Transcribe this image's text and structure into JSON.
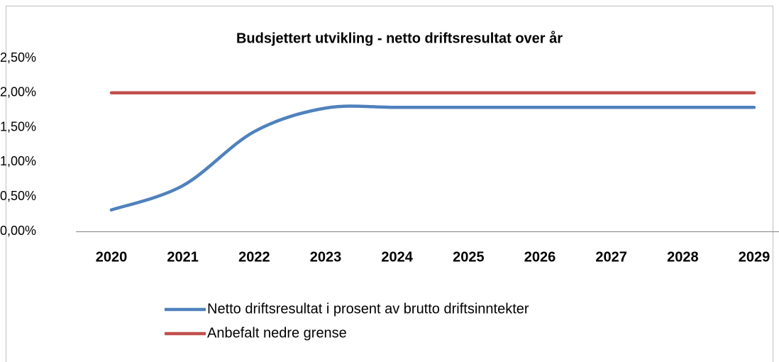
{
  "chart_data": {
    "type": "line",
    "title": "Budsjettert utvikling - netto driftsresultat over år",
    "categories": [
      "2020",
      "2021",
      "2022",
      "2023",
      "2024",
      "2025",
      "2026",
      "2027",
      "2028",
      "2029"
    ],
    "series": [
      {
        "name": "Netto driftsresultat i prosent av brutto driftsinntekter",
        "color": "#4f81bd",
        "values": [
          0.31,
          0.66,
          1.44,
          1.78,
          1.79,
          1.79,
          1.79,
          1.79,
          1.79,
          1.79
        ]
      },
      {
        "name": "Anbefalt nedre grense",
        "color": "#c0504d",
        "values": [
          2.0,
          2.0,
          2.0,
          2.0,
          2.0,
          2.0,
          2.0,
          2.0,
          2.0,
          2.0
        ]
      }
    ],
    "ylim": [
      0,
      2.5
    ],
    "yticks": [
      {
        "value": 0,
        "label": "0,00%"
      },
      {
        "value": 0.5,
        "label": "0,50%"
      },
      {
        "value": 1.0,
        "label": "1,00%"
      },
      {
        "value": 1.5,
        "label": "1,50%"
      },
      {
        "value": 2.0,
        "label": "2,00%"
      },
      {
        "value": 2.5,
        "label": "2,50%"
      }
    ],
    "category_label_color": "#c00000",
    "smooth": true
  }
}
